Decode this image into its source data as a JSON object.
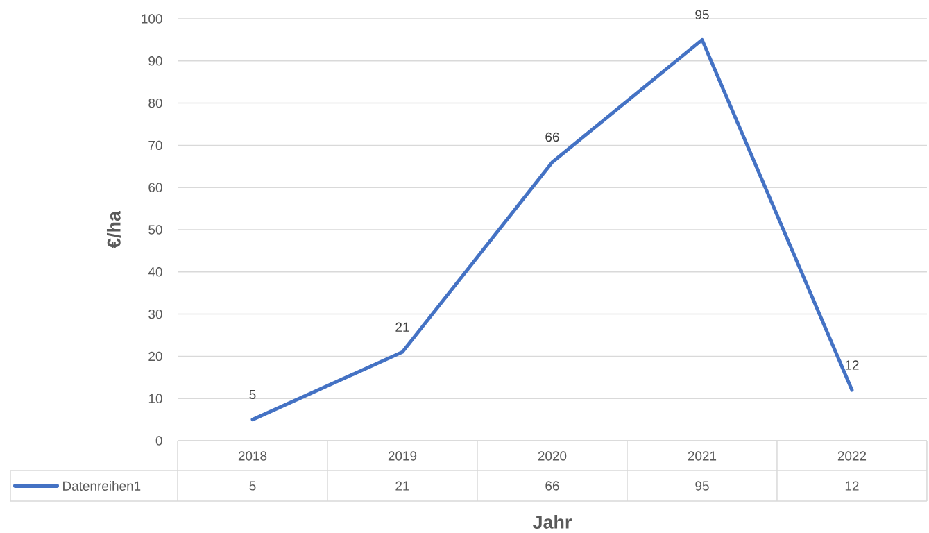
{
  "chart_data": {
    "type": "line",
    "xlabel": "Jahr",
    "ylabel": "€/ha",
    "categories": [
      "2018",
      "2019",
      "2020",
      "2021",
      "2022"
    ],
    "series": [
      {
        "name": "Datenreihen1",
        "color": "#4472c4",
        "values": [
          5,
          21,
          66,
          95,
          12
        ]
      }
    ],
    "ylim": [
      0,
      100
    ],
    "yticks": [
      0,
      10,
      20,
      30,
      40,
      50,
      60,
      70,
      80,
      90,
      100
    ],
    "grid": "y",
    "legend": "bottom",
    "data_labels": true,
    "line_style": "solid",
    "annotations": [
      {
        "text": "5",
        "x": "2018",
        "y": 5
      },
      {
        "text": "21",
        "x": "2019",
        "y": 21
      },
      {
        "text": "66",
        "x": "2020",
        "y": 66
      },
      {
        "text": "95",
        "x": "2021",
        "y": 95
      },
      {
        "text": "12",
        "x": "2022",
        "y": 12
      }
    ]
  }
}
